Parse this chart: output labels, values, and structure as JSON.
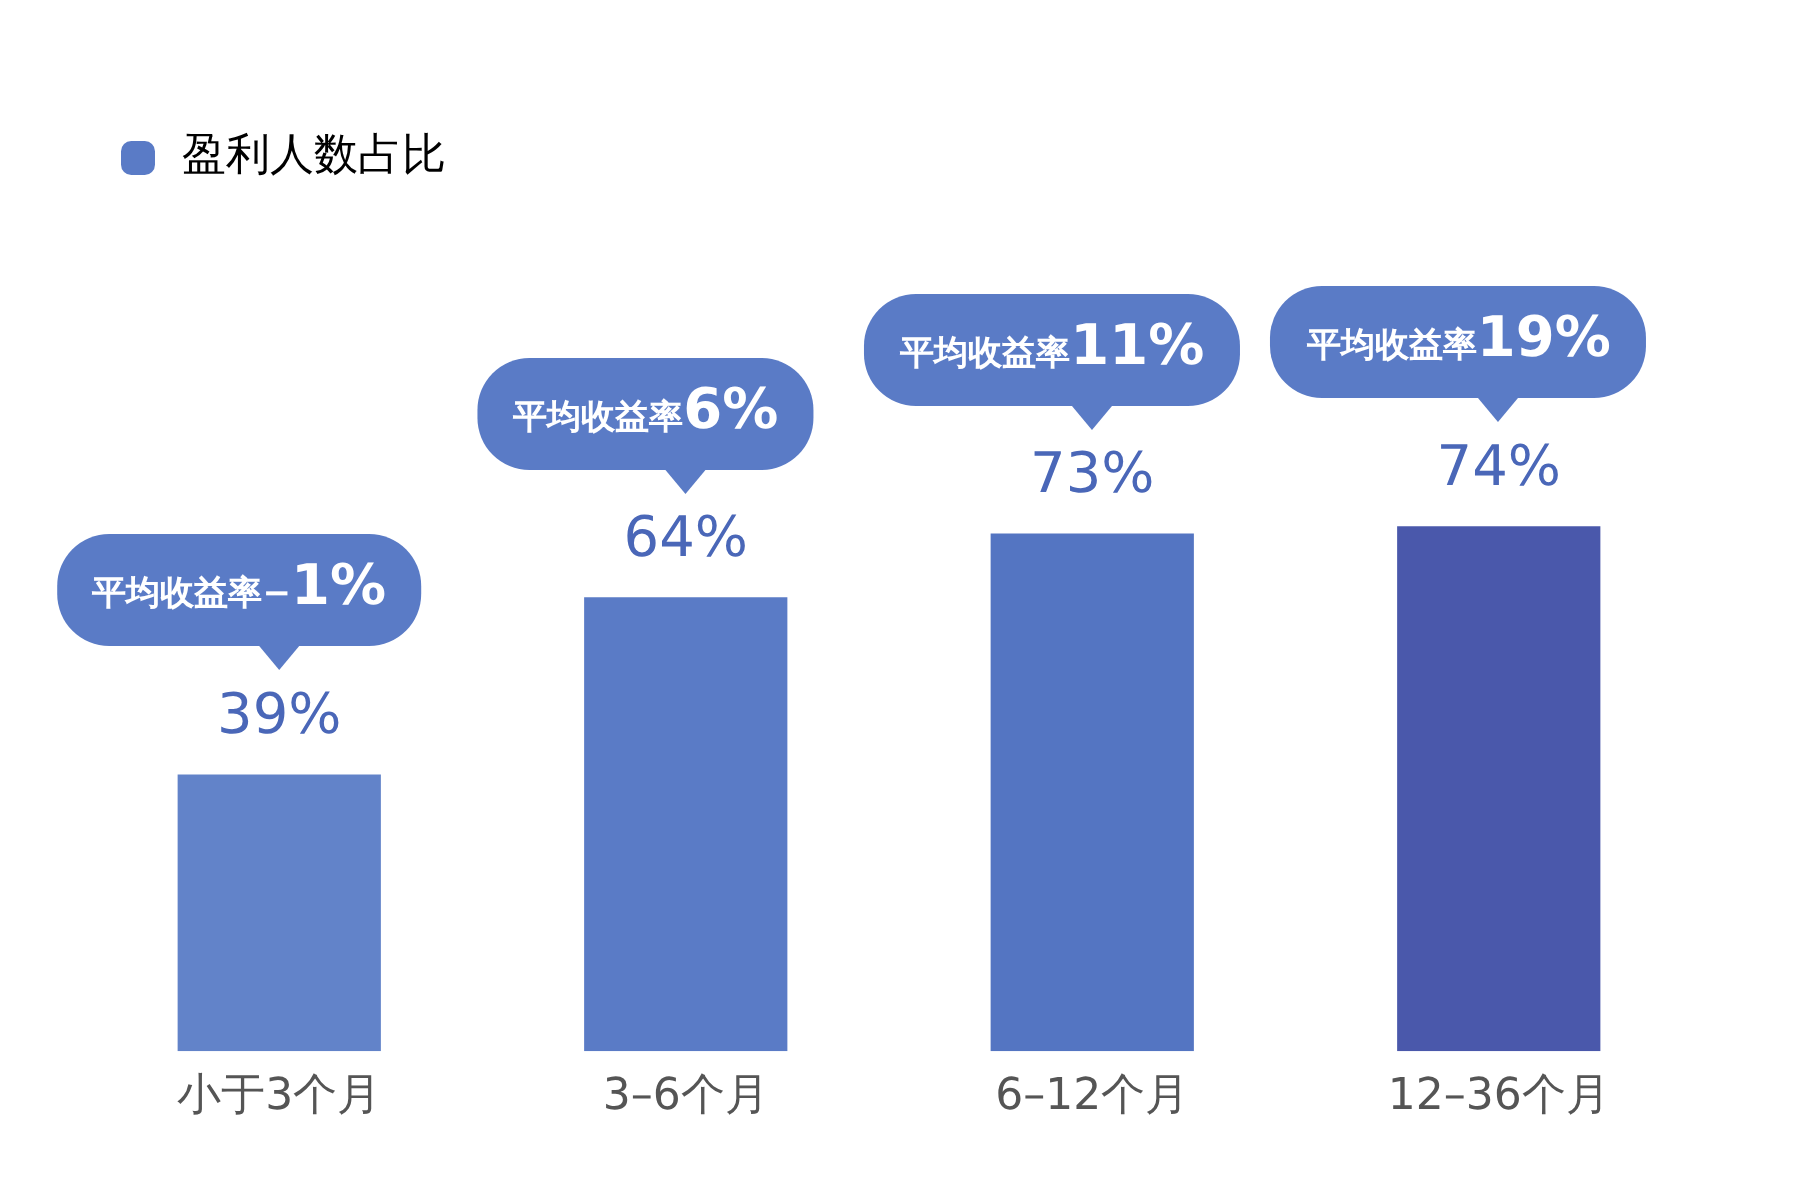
{
  "chart_data": {
    "type": "bar",
    "categories": [
      "小于3个月",
      "3–6个月",
      "6–12个月",
      "12–36个月"
    ],
    "series": [
      {
        "name": "盈利人数占比",
        "color": "#5a7bc6",
        "colors": [
          "#6283c9",
          "#5a7bc6",
          "#5475c2",
          "#4a58ab"
        ],
        "values": [
          39,
          64,
          73,
          74
        ],
        "value_labels": [
          "39%",
          "64%",
          "73%",
          "74%"
        ]
      }
    ],
    "annotations": [
      {
        "text": "平均收益率−1%",
        "x": "小于3个月",
        "y": 39
      },
      {
        "text": "平均收益率6%",
        "x": "3–6个月",
        "y": 64
      },
      {
        "text": "平均收益率11%",
        "x": "6–12个月",
        "y": 73
      },
      {
        "text": "平均收益率19%",
        "x": "12–36个月",
        "y": 74
      }
    ],
    "legend": "top left",
    "grid": false,
    "tick_labels": "x"
  }
}
